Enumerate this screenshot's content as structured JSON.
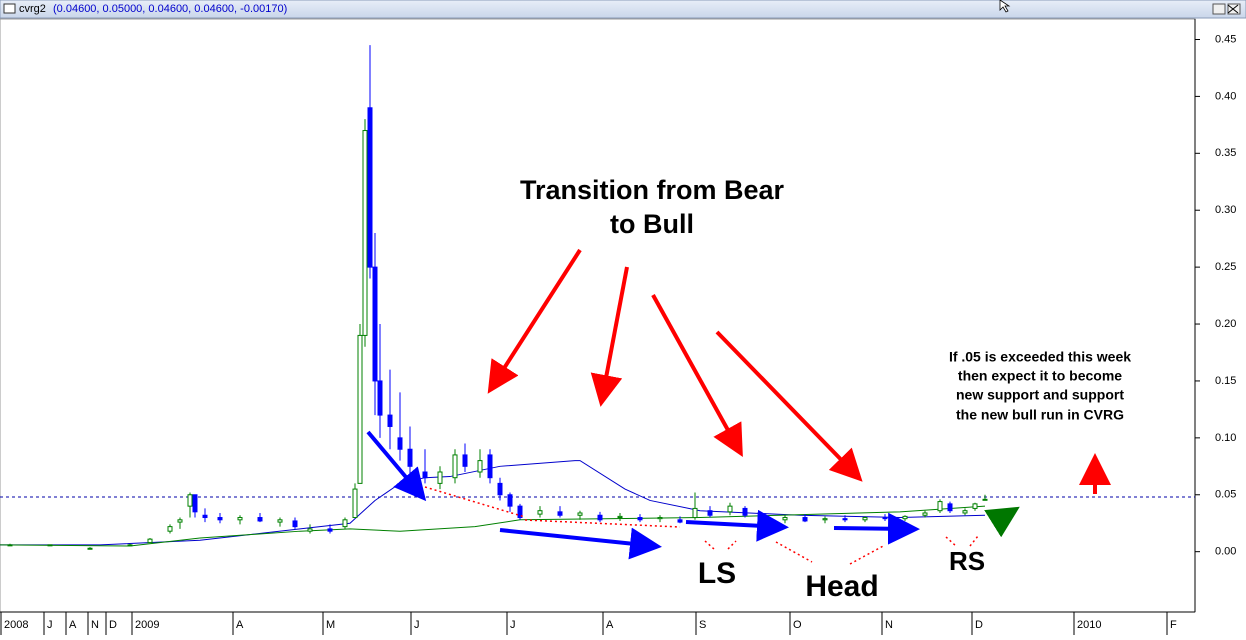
{
  "window": {
    "symbol": "cvrg2",
    "quote": "(0.04600, 0.05000, 0.04600, 0.04600, -0.00170)"
  },
  "chart_data": {
    "type": "candlestick",
    "xlim": [
      0,
      239
    ],
    "xticks": [
      {
        "value": 0,
        "label": "2008"
      },
      {
        "value": 8.6,
        "label": "J"
      },
      {
        "value": 13,
        "label": "A"
      },
      {
        "value": 17.4,
        "label": "N"
      },
      {
        "value": 21,
        "label": "D"
      },
      {
        "value": 26.2,
        "label": "2009"
      },
      {
        "value": 46.4,
        "label": "A"
      },
      {
        "value": 64.4,
        "label": "M"
      },
      {
        "value": 82,
        "label": "J"
      },
      {
        "value": 101.2,
        "label": "J"
      },
      {
        "value": 120.4,
        "label": "A"
      },
      {
        "value": 139,
        "label": "S"
      },
      {
        "value": 157.8,
        "label": "O"
      },
      {
        "value": 176.2,
        "label": "N"
      },
      {
        "value": 194.2,
        "label": "D"
      },
      {
        "value": 214.6,
        "label": "2010"
      },
      {
        "value": 233.2,
        "label": "F"
      }
    ],
    "ylim": [
      -0.053,
      0.468
    ],
    "yticks": [
      0.45,
      {
        "value": 0.4,
        "label": "0.40"
      },
      0.35,
      {
        "value": 0.3,
        "label": "0.30"
      },
      0.25,
      {
        "value": 0.2,
        "label": "0.20"
      },
      0.15,
      {
        "value": 0.1,
        "label": "0.10"
      },
      0.05,
      {
        "value": 0,
        "label": "0.00"
      }
    ],
    "up_color": "#008000",
    "down_color": "#0000ff",
    "x": [
      2,
      10,
      18,
      26,
      30,
      34,
      36,
      38,
      39,
      41,
      44,
      48,
      52,
      56,
      59,
      62,
      66,
      69,
      71,
      72,
      73,
      74,
      75,
      76,
      78,
      80,
      82,
      85,
      88,
      91,
      93,
      96,
      98,
      100,
      102,
      104,
      108,
      112,
      116,
      120,
      124,
      128,
      132,
      136,
      139,
      142,
      146,
      149,
      153,
      157,
      161,
      165,
      169,
      173,
      177,
      181,
      185,
      188,
      190,
      193,
      195,
      197
    ],
    "open": [
      0.006,
      0.006,
      0.003,
      0.006,
      0.008,
      0.018,
      0.026,
      0.04,
      0.05,
      0.032,
      0.03,
      0.028,
      0.03,
      0.026,
      0.027,
      0.018,
      0.02,
      0.022,
      0.03,
      0.06,
      0.19,
      0.39,
      0.25,
      0.15,
      0.12,
      0.1,
      0.09,
      0.07,
      0.06,
      0.065,
      0.085,
      0.07,
      0.085,
      0.06,
      0.05,
      0.04,
      0.033,
      0.035,
      0.032,
      0.032,
      0.03,
      0.03,
      0.029,
      0.028,
      0.03,
      0.036,
      0.035,
      0.038,
      0.03,
      0.028,
      0.03,
      0.028,
      0.029,
      0.028,
      0.03,
      0.029,
      0.032,
      0.036,
      0.042,
      0.034,
      0.038,
      0.046
    ],
    "high": [
      0.007,
      0.006,
      0.004,
      0.007,
      0.012,
      0.024,
      0.03,
      0.052,
      0.05,
      0.038,
      0.034,
      0.032,
      0.034,
      0.03,
      0.03,
      0.024,
      0.024,
      0.03,
      0.06,
      0.2,
      0.38,
      0.445,
      0.28,
      0.2,
      0.16,
      0.14,
      0.11,
      0.09,
      0.075,
      0.09,
      0.095,
      0.09,
      0.09,
      0.065,
      0.052,
      0.042,
      0.04,
      0.04,
      0.036,
      0.035,
      0.034,
      0.033,
      0.032,
      0.031,
      0.052,
      0.04,
      0.043,
      0.04,
      0.034,
      0.032,
      0.033,
      0.031,
      0.032,
      0.031,
      0.033,
      0.032,
      0.036,
      0.046,
      0.044,
      0.038,
      0.043,
      0.05
    ],
    "low": [
      0.005,
      0.005,
      0.002,
      0.005,
      0.008,
      0.016,
      0.02,
      0.03,
      0.03,
      0.026,
      0.025,
      0.024,
      0.026,
      0.022,
      0.02,
      0.016,
      0.016,
      0.02,
      0.03,
      0.06,
      0.18,
      0.24,
      0.12,
      0.1,
      0.09,
      0.08,
      0.065,
      0.06,
      0.055,
      0.06,
      0.07,
      0.065,
      0.06,
      0.045,
      0.035,
      0.028,
      0.03,
      0.03,
      0.028,
      0.026,
      0.027,
      0.026,
      0.026,
      0.025,
      0.028,
      0.03,
      0.032,
      0.03,
      0.026,
      0.025,
      0.026,
      0.025,
      0.026,
      0.026,
      0.027,
      0.027,
      0.03,
      0.034,
      0.034,
      0.032,
      0.036,
      0.046
    ],
    "close": [
      0.006,
      0.006,
      0.003,
      0.006,
      0.011,
      0.022,
      0.028,
      0.05,
      0.035,
      0.03,
      0.028,
      0.03,
      0.027,
      0.028,
      0.022,
      0.02,
      0.018,
      0.028,
      0.055,
      0.19,
      0.37,
      0.25,
      0.15,
      0.12,
      0.11,
      0.09,
      0.075,
      0.065,
      0.07,
      0.085,
      0.075,
      0.08,
      0.065,
      0.05,
      0.04,
      0.03,
      0.036,
      0.032,
      0.034,
      0.028,
      0.031,
      0.028,
      0.03,
      0.026,
      0.038,
      0.032,
      0.04,
      0.032,
      0.028,
      0.03,
      0.027,
      0.029,
      0.028,
      0.03,
      0.029,
      0.031,
      0.034,
      0.044,
      0.036,
      0.036,
      0.042,
      0.046
    ],
    "lines": [
      {
        "color": "#0000cc",
        "x": [
          0,
          20,
          40,
          60,
          70,
          75,
          80,
          85,
          90,
          100,
          115,
          116,
          125,
          130,
          140,
          160,
          180,
          197
        ],
        "values": [
          0.006,
          0.006,
          0.01,
          0.02,
          0.025,
          0.045,
          0.06,
          0.065,
          0.066,
          0.075,
          0.08,
          0.08,
          0.055,
          0.045,
          0.036,
          0.032,
          0.03,
          0.032
        ]
      },
      {
        "color": "#008000",
        "x": [
          0,
          26,
          40,
          60,
          70,
          80,
          95,
          104,
          140,
          180,
          197
        ],
        "values": [
          0.006,
          0.005,
          0.012,
          0.018,
          0.02,
          0.018,
          0.022,
          0.028,
          0.03,
          0.035,
          0.04
        ]
      }
    ],
    "reference_line": 0.048,
    "annotations": {
      "title": [
        "Transition from Bear",
        "to Bull"
      ],
      "ls": "LS",
      "head": "Head",
      "rs": "RS",
      "note": [
        "If .05 is exceeded this week",
        "then expect it to become",
        "new support and support",
        "the new bull run in CVRG"
      ]
    }
  }
}
